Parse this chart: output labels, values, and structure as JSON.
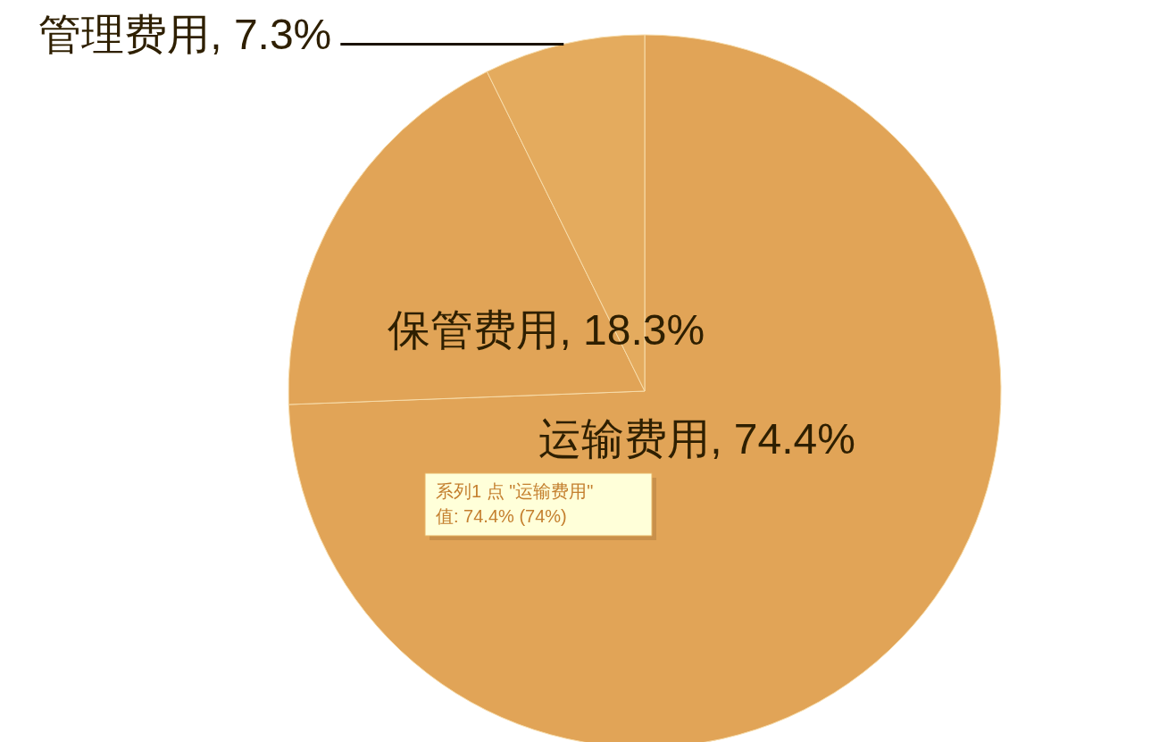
{
  "chart_data": {
    "type": "pie",
    "categories": [
      "运输费用",
      "保管费用",
      "管理费用"
    ],
    "values": [
      74.4,
      18.3,
      7.3
    ],
    "colors": [
      "#e1a457",
      "#e1a457",
      "#e4ab5e"
    ],
    "value_labels": [
      ", 74.4%",
      ", 18.3%",
      ", 7.3%"
    ],
    "annotations": [
      "系列1 点 \"运输费用\"",
      "值: 74.4% (74%)"
    ]
  }
}
